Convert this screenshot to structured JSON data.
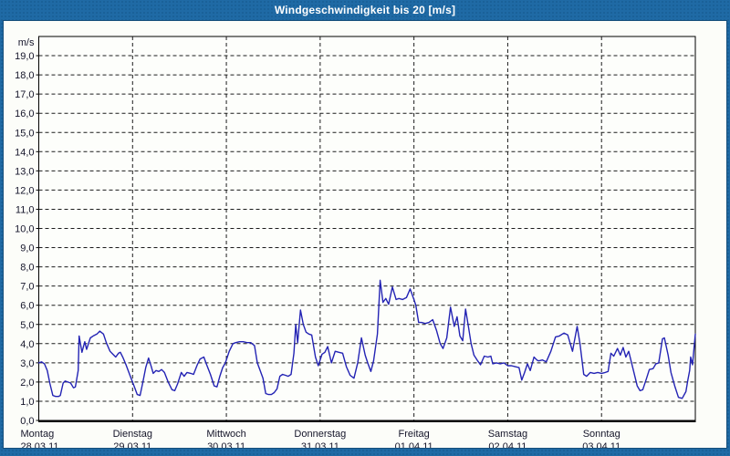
{
  "window": {
    "title": "Windgeschwindigkeit bis 20 [m/s]"
  },
  "colors": {
    "frame": "#1f6aa5",
    "frame_border": "#164f7b",
    "title_text": "#ffffff",
    "content_bg": "#fcfdf9",
    "plot_bg": "#fdfefb",
    "plot_border": "#000000",
    "grid": "#1c1c1c",
    "tick_text": "#15152a",
    "line": "#2323b4"
  },
  "chart_data": {
    "type": "line",
    "title": "Windgeschwindigkeit bis 20 [m/s]",
    "ylabel": "m/s",
    "unit_label": "m/s",
    "ylim": [
      0,
      20
    ],
    "ytick_step": 1.0,
    "ytick_labels": [
      "0,0",
      "1,0",
      "2,0",
      "3,0",
      "4,0",
      "5,0",
      "6,0",
      "7,0",
      "8,0",
      "9,0",
      "10,0",
      "11,0",
      "12,0",
      "13,0",
      "14,0",
      "15,0",
      "16,0",
      "17,0",
      "18,0",
      "19,0"
    ],
    "grid": "dashed",
    "legend": "none",
    "xlim_days": [
      0,
      7
    ],
    "x_days": [
      {
        "name": "Montag",
        "date": "28.03.11"
      },
      {
        "name": "Dienstag",
        "date": "29.03.11"
      },
      {
        "name": "Mittwoch",
        "date": "30.03.11"
      },
      {
        "name": "Donnerstag",
        "date": "31.03.11"
      },
      {
        "name": "Freitag",
        "date": "01.04.11"
      },
      {
        "name": "Samstag",
        "date": "02.04.11"
      },
      {
        "name": "Sonntag",
        "date": "03.04.11"
      }
    ],
    "series": [
      {
        "name": "Windgeschwindigkeit",
        "unit": "m/s",
        "points": [
          [
            0.0,
            3.0
          ],
          [
            0.03,
            3.05
          ],
          [
            0.06,
            2.95
          ],
          [
            0.09,
            2.6
          ],
          [
            0.12,
            1.9
          ],
          [
            0.15,
            1.3
          ],
          [
            0.18,
            1.25
          ],
          [
            0.21,
            1.25
          ],
          [
            0.23,
            1.3
          ],
          [
            0.26,
            1.95
          ],
          [
            0.28,
            2.05
          ],
          [
            0.31,
            2.0
          ],
          [
            0.34,
            1.95
          ],
          [
            0.37,
            1.7
          ],
          [
            0.39,
            1.75
          ],
          [
            0.42,
            2.6
          ],
          [
            0.43,
            4.4
          ],
          [
            0.46,
            3.55
          ],
          [
            0.49,
            4.1
          ],
          [
            0.51,
            3.7
          ],
          [
            0.55,
            4.3
          ],
          [
            0.58,
            4.4
          ],
          [
            0.62,
            4.5
          ],
          [
            0.65,
            4.65
          ],
          [
            0.69,
            4.5
          ],
          [
            0.72,
            4.05
          ],
          [
            0.76,
            3.6
          ],
          [
            0.79,
            3.45
          ],
          [
            0.82,
            3.3
          ],
          [
            0.85,
            3.5
          ],
          [
            0.87,
            3.55
          ],
          [
            0.9,
            3.25
          ],
          [
            0.93,
            2.9
          ],
          [
            0.98,
            2.25
          ],
          [
            1.02,
            1.75
          ],
          [
            1.05,
            1.35
          ],
          [
            1.08,
            1.3
          ],
          [
            1.11,
            2.0
          ],
          [
            1.14,
            2.75
          ],
          [
            1.17,
            3.25
          ],
          [
            1.2,
            2.8
          ],
          [
            1.22,
            2.45
          ],
          [
            1.25,
            2.6
          ],
          [
            1.28,
            2.55
          ],
          [
            1.31,
            2.65
          ],
          [
            1.34,
            2.5
          ],
          [
            1.38,
            2.0
          ],
          [
            1.42,
            1.6
          ],
          [
            1.45,
            1.55
          ],
          [
            1.48,
            1.9
          ],
          [
            1.52,
            2.5
          ],
          [
            1.55,
            2.3
          ],
          [
            1.58,
            2.5
          ],
          [
            1.62,
            2.45
          ],
          [
            1.65,
            2.4
          ],
          [
            1.69,
            2.9
          ],
          [
            1.72,
            3.2
          ],
          [
            1.76,
            3.3
          ],
          [
            1.79,
            2.9
          ],
          [
            1.83,
            2.4
          ],
          [
            1.87,
            1.8
          ],
          [
            1.9,
            1.75
          ],
          [
            1.93,
            2.3
          ],
          [
            1.96,
            2.75
          ],
          [
            1.99,
            3.0
          ],
          [
            2.03,
            3.6
          ],
          [
            2.07,
            4.0
          ],
          [
            2.1,
            4.05
          ],
          [
            2.14,
            4.1
          ],
          [
            2.18,
            4.1
          ],
          [
            2.22,
            4.05
          ],
          [
            2.26,
            4.05
          ],
          [
            2.3,
            3.9
          ],
          [
            2.33,
            3.0
          ],
          [
            2.36,
            2.6
          ],
          [
            2.39,
            2.2
          ],
          [
            2.42,
            1.4
          ],
          [
            2.45,
            1.35
          ],
          [
            2.48,
            1.35
          ],
          [
            2.51,
            1.45
          ],
          [
            2.54,
            1.65
          ],
          [
            2.57,
            2.3
          ],
          [
            2.6,
            2.4
          ],
          [
            2.63,
            2.35
          ],
          [
            2.66,
            2.3
          ],
          [
            2.69,
            2.4
          ],
          [
            2.72,
            3.5
          ],
          [
            2.74,
            5.0
          ],
          [
            2.76,
            4.05
          ],
          [
            2.79,
            5.75
          ],
          [
            2.82,
            5.0
          ],
          [
            2.85,
            4.6
          ],
          [
            2.88,
            4.5
          ],
          [
            2.91,
            4.45
          ],
          [
            2.95,
            3.3
          ],
          [
            2.98,
            2.85
          ],
          [
            3.02,
            3.45
          ],
          [
            3.05,
            3.55
          ],
          [
            3.08,
            3.85
          ],
          [
            3.12,
            3.0
          ],
          [
            3.16,
            3.6
          ],
          [
            3.2,
            3.55
          ],
          [
            3.24,
            3.5
          ],
          [
            3.28,
            2.8
          ],
          [
            3.32,
            2.35
          ],
          [
            3.36,
            2.2
          ],
          [
            3.4,
            3.0
          ],
          [
            3.44,
            4.3
          ],
          [
            3.48,
            3.4
          ],
          [
            3.51,
            2.95
          ],
          [
            3.54,
            2.55
          ],
          [
            3.57,
            3.1
          ],
          [
            3.61,
            4.5
          ],
          [
            3.64,
            7.3
          ],
          [
            3.67,
            6.15
          ],
          [
            3.7,
            6.35
          ],
          [
            3.73,
            6.05
          ],
          [
            3.77,
            6.95
          ],
          [
            3.81,
            6.3
          ],
          [
            3.84,
            6.35
          ],
          [
            3.88,
            6.3
          ],
          [
            3.92,
            6.4
          ],
          [
            3.96,
            6.85
          ],
          [
            4.0,
            6.3
          ],
          [
            4.02,
            6.0
          ],
          [
            4.05,
            5.1
          ],
          [
            4.08,
            5.1
          ],
          [
            4.12,
            5.05
          ],
          [
            4.16,
            5.1
          ],
          [
            4.2,
            5.25
          ],
          [
            4.24,
            4.7
          ],
          [
            4.28,
            4.0
          ],
          [
            4.31,
            3.75
          ],
          [
            4.35,
            4.3
          ],
          [
            4.39,
            5.9
          ],
          [
            4.43,
            4.9
          ],
          [
            4.46,
            5.4
          ],
          [
            4.49,
            4.4
          ],
          [
            4.52,
            4.15
          ],
          [
            4.55,
            5.8
          ],
          [
            4.58,
            4.9
          ],
          [
            4.61,
            4.0
          ],
          [
            4.64,
            3.4
          ],
          [
            4.68,
            3.1
          ],
          [
            4.71,
            2.9
          ],
          [
            4.75,
            3.35
          ],
          [
            4.79,
            3.3
          ],
          [
            4.82,
            3.35
          ],
          [
            4.84,
            2.95
          ],
          [
            4.88,
            3.0
          ],
          [
            4.92,
            2.95
          ],
          [
            4.96,
            3.0
          ],
          [
            5.0,
            2.85
          ],
          [
            5.04,
            2.85
          ],
          [
            5.08,
            2.8
          ],
          [
            5.12,
            2.75
          ],
          [
            5.15,
            2.1
          ],
          [
            5.18,
            2.5
          ],
          [
            5.21,
            2.95
          ],
          [
            5.24,
            2.6
          ],
          [
            5.28,
            3.3
          ],
          [
            5.31,
            3.15
          ],
          [
            5.33,
            3.1
          ],
          [
            5.37,
            3.15
          ],
          [
            5.41,
            3.05
          ],
          [
            5.46,
            3.6
          ],
          [
            5.51,
            4.35
          ],
          [
            5.55,
            4.4
          ],
          [
            5.6,
            4.55
          ],
          [
            5.64,
            4.45
          ],
          [
            5.69,
            3.6
          ],
          [
            5.74,
            4.9
          ],
          [
            5.77,
            4.0
          ],
          [
            5.81,
            2.4
          ],
          [
            5.84,
            2.3
          ],
          [
            5.88,
            2.5
          ],
          [
            5.92,
            2.45
          ],
          [
            5.96,
            2.5
          ],
          [
            6.0,
            2.45
          ],
          [
            6.04,
            2.5
          ],
          [
            6.07,
            2.55
          ],
          [
            6.1,
            3.5
          ],
          [
            6.13,
            3.35
          ],
          [
            6.17,
            3.75
          ],
          [
            6.2,
            3.4
          ],
          [
            6.23,
            3.8
          ],
          [
            6.26,
            3.3
          ],
          [
            6.29,
            3.6
          ],
          [
            6.34,
            2.6
          ],
          [
            6.38,
            1.8
          ],
          [
            6.41,
            1.55
          ],
          [
            6.44,
            1.6
          ],
          [
            6.48,
            2.2
          ],
          [
            6.51,
            2.65
          ],
          [
            6.55,
            2.7
          ],
          [
            6.58,
            2.95
          ],
          [
            6.61,
            3.0
          ],
          [
            6.65,
            4.25
          ],
          [
            6.67,
            4.3
          ],
          [
            6.71,
            3.4
          ],
          [
            6.74,
            2.5
          ],
          [
            6.78,
            1.8
          ],
          [
            6.82,
            1.2
          ],
          [
            6.86,
            1.15
          ],
          [
            6.9,
            1.5
          ],
          [
            6.92,
            2.1
          ],
          [
            6.94,
            2.6
          ],
          [
            6.95,
            3.3
          ],
          [
            6.97,
            2.9
          ],
          [
            7.0,
            4.5
          ]
        ]
      }
    ]
  }
}
